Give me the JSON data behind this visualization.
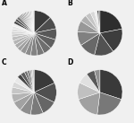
{
  "title_A": "A",
  "title_B": "B",
  "title_C": "C",
  "title_D": "D",
  "pie_A": {
    "values": [
      13,
      9,
      8,
      7,
      6,
      5,
      5,
      4,
      4,
      3,
      3,
      3,
      3,
      2,
      2,
      2,
      2,
      2,
      2,
      2,
      2,
      1,
      1,
      1,
      1,
      1,
      1,
      1,
      1,
      1,
      1,
      1,
      1
    ],
    "colors": [
      "#3a3a3a",
      "#4d4d4d",
      "#585858",
      "#606060",
      "#6e6e6e",
      "#787878",
      "#828282",
      "#8c8c8c",
      "#969696",
      "#a0a0a0",
      "#ababab",
      "#b5b5b5",
      "#bfbfbf",
      "#c9c9c9",
      "#d3d3d3",
      "#dddddd",
      "#e6e6e6",
      "#eeeeee",
      "#444444",
      "#505050",
      "#6a6a6a",
      "#747474",
      "#808080",
      "#8a8a8a",
      "#949494",
      "#9e9e9e",
      "#a8a8a8",
      "#b2b2b2",
      "#bcbcbc",
      "#c6c6c6",
      "#d0d0d0",
      "#dadada",
      "#e4e4e4"
    ]
  },
  "pie_B": {
    "values": [
      22,
      18,
      14,
      12,
      10,
      8,
      5,
      4,
      3,
      2,
      1,
      1
    ],
    "colors": [
      "#2e2e2e",
      "#3d3d3d",
      "#525252",
      "#686868",
      "#808080",
      "#989898",
      "#b0b0b0",
      "#c4c4c4",
      "#d8d8d8",
      "#ececec",
      "#444444",
      "#5e5e5e"
    ]
  },
  "pie_C": {
    "values": [
      18,
      14,
      11,
      9,
      8,
      7,
      6,
      5,
      4,
      4,
      3,
      3,
      2,
      2,
      1,
      1,
      1
    ],
    "colors": [
      "#3a3a3a",
      "#505050",
      "#666666",
      "#7a7a7a",
      "#8e8e8e",
      "#a2a2a2",
      "#b4b4b4",
      "#c6c6c6",
      "#d8d8d8",
      "#e8e8e8",
      "#464646",
      "#5c5c5c",
      "#707070",
      "#848484",
      "#989898",
      "#acacac",
      "#c0c0c0"
    ]
  },
  "pie_D": {
    "values": [
      30,
      22,
      18,
      12,
      8,
      6,
      4
    ],
    "colors": [
      "#3a3a3a",
      "#787878",
      "#a0a0a0",
      "#c0c0c0",
      "#e0e0e0",
      "#585858",
      "#909090"
    ]
  },
  "background_color": "#f0f0f0",
  "title_fontsize": 5.5,
  "wedge_linewidth": 0.3,
  "wedge_edgecolor": "#ffffff"
}
